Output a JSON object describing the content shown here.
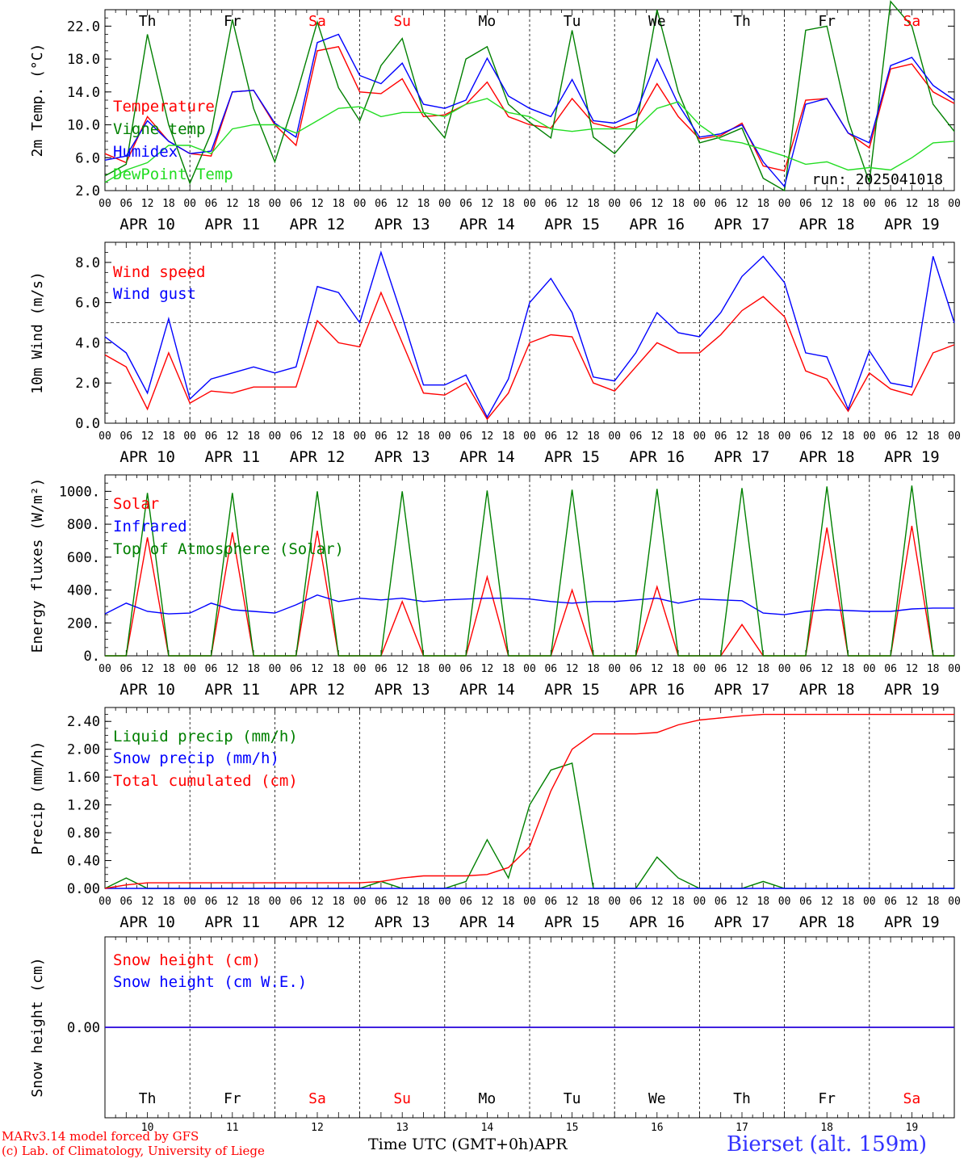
{
  "colors": {
    "red": "#ff0000",
    "green": "#008000",
    "blue": "#0000ff",
    "lightgreen": "#22dd22",
    "grey": "#555555"
  },
  "days": {
    "abbr": [
      "Th",
      "Fr",
      "Sa",
      "Su",
      "Mo",
      "Tu",
      "We",
      "Th",
      "Fr",
      "Sa"
    ],
    "dates": [
      "APR 10",
      "APR 11",
      "APR 12",
      "APR 13",
      "APR 14",
      "APR 15",
      "APR 16",
      "APR 17",
      "APR 18",
      "APR 19"
    ],
    "daynums": [
      "10",
      "11",
      "12",
      "13",
      "14",
      "15",
      "16",
      "17",
      "18",
      "19"
    ],
    "weekend": [
      false,
      false,
      true,
      true,
      false,
      false,
      false,
      false,
      false,
      true
    ]
  },
  "hour_ticks": [
    "00",
    "06",
    "12",
    "18"
  ],
  "hour_end": "00",
  "footer": {
    "model": "MARv3.14 model forced by GFS",
    "lab": "(c) Lab. of Climatology, University of Liege",
    "xlabel": "Time UTC (GMT+0h)",
    "month": "APR",
    "station": "Bierset (alt. 159m)"
  },
  "chart_data": [
    {
      "type": "line",
      "ylabel": "2m Temp. (°C)",
      "ylim": [
        2.0,
        24.0
      ],
      "yticks": [
        "2.0",
        "6.0",
        "10.0",
        "14.0",
        "18.0",
        "22.0"
      ],
      "run_label": "run: 2025041018",
      "x_hours": [
        0,
        6,
        12,
        18,
        24,
        30,
        36,
        42,
        48,
        54,
        60,
        66,
        72,
        78,
        84,
        90,
        96,
        102,
        108,
        114,
        120,
        126,
        132,
        138,
        144,
        150,
        156,
        162,
        168,
        174,
        180,
        186,
        192,
        198,
        204,
        210,
        216,
        222,
        228,
        234,
        240
      ],
      "series": [
        {
          "name": "Temperature",
          "color": "red",
          "values": [
            6.5,
            5.4,
            11.0,
            8.0,
            6.5,
            6.2,
            14.0,
            14.2,
            10.0,
            7.5,
            19.0,
            19.5,
            14.0,
            13.8,
            15.6,
            11.0,
            11.2,
            12.5,
            15.2,
            11.0,
            10.0,
            9.6,
            13.2,
            10.2,
            9.6,
            10.5,
            15.0,
            11.0,
            8.3,
            8.7,
            10.2,
            5.0,
            4.4,
            13.0,
            13.2,
            9.0,
            7.2,
            16.8,
            17.4,
            14.0,
            12.6
          ]
        },
        {
          "name": "Vigne temp",
          "color": "green",
          "values": [
            3.8,
            5.2,
            21.0,
            10.0,
            2.9,
            9.0,
            22.8,
            12.0,
            5.5,
            13.5,
            22.5,
            14.5,
            10.5,
            17.2,
            20.5,
            11.5,
            8.4,
            18.0,
            19.5,
            12.5,
            10.3,
            8.4,
            21.5,
            8.5,
            6.5,
            9.5,
            24.0,
            14.0,
            7.8,
            8.5,
            9.6,
            3.5,
            2.0,
            21.5,
            22.0,
            10.5,
            3.0,
            25.0,
            22.0,
            12.5,
            9.2
          ]
        },
        {
          "name": "Humidex",
          "color": "blue",
          "values": [
            5.7,
            6.2,
            10.5,
            8.0,
            6.5,
            6.8,
            14.0,
            14.2,
            10.2,
            8.5,
            20.0,
            21.0,
            16.0,
            15.0,
            17.5,
            12.5,
            12.0,
            13.0,
            18.1,
            13.5,
            12.0,
            11.0,
            15.5,
            10.5,
            10.2,
            11.4,
            18.0,
            12.5,
            8.5,
            8.9,
            10.0,
            5.5,
            2.5,
            12.5,
            13.2,
            9.0,
            7.8,
            17.2,
            18.2,
            14.8,
            13.0
          ]
        },
        {
          "name": "DewPoint Temp",
          "color": "lightgreen",
          "values": [
            3.0,
            4.5,
            5.4,
            7.5,
            7.5,
            6.5,
            9.5,
            10.0,
            10.0,
            9.0,
            10.5,
            12.0,
            12.2,
            11.0,
            11.5,
            11.5,
            11.0,
            12.5,
            13.2,
            11.5,
            11.0,
            9.5,
            9.2,
            9.5,
            9.5,
            9.5,
            12.0,
            12.8,
            10.0,
            8.2,
            7.8,
            7.0,
            6.2,
            5.2,
            5.5,
            4.5,
            4.8,
            4.5,
            6.0,
            7.8,
            8.0
          ]
        }
      ]
    },
    {
      "type": "line",
      "ylabel": "10m Wind (m/s)",
      "ylim": [
        0.0,
        9.0
      ],
      "yticks": [
        "0.0",
        "2.0",
        "4.0",
        "6.0",
        "8.0"
      ],
      "ref_line": 5.0,
      "x_hours": [
        0,
        6,
        12,
        18,
        24,
        30,
        36,
        42,
        48,
        54,
        60,
        66,
        72,
        78,
        84,
        90,
        96,
        102,
        108,
        114,
        120,
        126,
        132,
        138,
        144,
        150,
        156,
        162,
        168,
        174,
        180,
        186,
        192,
        198,
        204,
        210,
        216,
        222,
        228,
        234,
        240
      ],
      "series": [
        {
          "name": "Wind speed",
          "color": "red",
          "values": [
            3.4,
            2.8,
            0.7,
            3.5,
            1.0,
            1.6,
            1.5,
            1.8,
            1.8,
            1.8,
            5.1,
            4.0,
            3.8,
            6.5,
            4.0,
            1.5,
            1.4,
            2.0,
            0.2,
            1.5,
            4.0,
            4.4,
            4.3,
            2.0,
            1.6,
            2.8,
            4.0,
            3.5,
            3.5,
            4.4,
            5.6,
            6.3,
            5.3,
            2.6,
            2.2,
            0.6,
            2.5,
            1.7,
            1.4,
            3.5,
            3.9
          ]
        },
        {
          "name": "Wind gust",
          "color": "blue",
          "values": [
            4.3,
            3.5,
            1.5,
            5.2,
            1.2,
            2.2,
            2.5,
            2.8,
            2.5,
            2.8,
            6.8,
            6.5,
            5.0,
            8.5,
            5.3,
            1.9,
            1.9,
            2.4,
            0.3,
            2.2,
            6.0,
            7.2,
            5.5,
            2.3,
            2.1,
            3.5,
            5.5,
            4.5,
            4.3,
            5.5,
            7.3,
            8.3,
            7.0,
            3.5,
            3.3,
            0.7,
            3.6,
            2.0,
            1.8,
            8.3,
            5.0
          ]
        }
      ]
    },
    {
      "type": "line",
      "ylabel": "Energy fluxes (W/m²)",
      "ylim": [
        0,
        1100
      ],
      "yticks": [
        "0.",
        "200.",
        "400.",
        "600.",
        "800.",
        "1000."
      ],
      "x_hours": [
        0,
        6,
        12,
        18,
        24,
        30,
        36,
        42,
        48,
        54,
        60,
        66,
        72,
        78,
        84,
        90,
        96,
        102,
        108,
        114,
        120,
        126,
        132,
        138,
        144,
        150,
        156,
        162,
        168,
        174,
        180,
        186,
        192,
        198,
        204,
        210,
        216,
        222,
        228,
        234,
        240
      ],
      "series": [
        {
          "name": "Solar",
          "color": "red",
          "values": [
            0,
            0,
            720,
            0,
            0,
            0,
            750,
            0,
            0,
            0,
            760,
            0,
            0,
            0,
            330,
            0,
            0,
            0,
            480,
            0,
            0,
            0,
            400,
            0,
            0,
            0,
            420,
            0,
            0,
            0,
            190,
            0,
            0,
            0,
            780,
            0,
            0,
            0,
            790,
            0,
            0
          ]
        },
        {
          "name": "Infrared",
          "color": "blue",
          "values": [
            255,
            320,
            270,
            255,
            260,
            320,
            280,
            270,
            260,
            310,
            370,
            330,
            350,
            340,
            350,
            330,
            340,
            345,
            350,
            350,
            345,
            330,
            320,
            330,
            330,
            340,
            350,
            320,
            345,
            340,
            335,
            260,
            250,
            270,
            280,
            275,
            270,
            270,
            285,
            290,
            290
          ]
        },
        {
          "name": "Top of Atmosphere (Solar)",
          "color": "green",
          "values": [
            0,
            0,
            990,
            0,
            0,
            0,
            990,
            0,
            0,
            0,
            1000,
            0,
            0,
            0,
            1000,
            0,
            0,
            0,
            1005,
            0,
            0,
            0,
            1010,
            0,
            0,
            0,
            1015,
            0,
            0,
            0,
            1020,
            0,
            0,
            0,
            1030,
            0,
            0,
            0,
            1035,
            0,
            0
          ]
        }
      ]
    },
    {
      "type": "line",
      "ylabel": "Precip (mm/h)",
      "ylim": [
        0.0,
        2.6
      ],
      "yticks": [
        "0.00",
        "0.40",
        "0.80",
        "1.20",
        "1.60",
        "2.00",
        "2.40"
      ],
      "x_hours": [
        0,
        6,
        12,
        18,
        24,
        30,
        36,
        42,
        48,
        54,
        60,
        66,
        72,
        78,
        84,
        90,
        96,
        102,
        108,
        114,
        120,
        126,
        132,
        138,
        144,
        150,
        156,
        162,
        168,
        174,
        180,
        186,
        192,
        198,
        204,
        210,
        216,
        222,
        228,
        234,
        240
      ],
      "series": [
        {
          "name": "Liquid precip (mm/h)",
          "color": "green",
          "values": [
            0,
            0.15,
            0,
            0,
            0,
            0,
            0,
            0,
            0,
            0,
            0,
            0,
            0,
            0.1,
            0,
            0,
            0,
            0.1,
            0.7,
            0.15,
            1.2,
            1.7,
            1.8,
            0,
            0,
            0,
            0.45,
            0.15,
            0,
            0,
            0,
            0.1,
            0,
            0,
            0,
            0,
            0,
            0,
            0,
            0,
            0
          ]
        },
        {
          "name": "Snow precip (mm/h)",
          "color": "blue",
          "values": [
            0,
            0,
            0,
            0,
            0,
            0,
            0,
            0,
            0,
            0,
            0,
            0,
            0,
            0,
            0,
            0,
            0,
            0,
            0,
            0,
            0,
            0,
            0,
            0,
            0,
            0,
            0,
            0,
            0,
            0,
            0,
            0,
            0,
            0,
            0,
            0,
            0,
            0,
            0,
            0,
            0
          ]
        },
        {
          "name": "Total cumulated (cm)",
          "color": "red",
          "values": [
            0,
            0.05,
            0.08,
            0.08,
            0.08,
            0.08,
            0.08,
            0.08,
            0.08,
            0.08,
            0.08,
            0.08,
            0.08,
            0.1,
            0.15,
            0.18,
            0.18,
            0.18,
            0.2,
            0.3,
            0.6,
            1.4,
            2.0,
            2.22,
            2.22,
            2.22,
            2.24,
            2.35,
            2.42,
            2.45,
            2.48,
            2.5,
            2.5,
            2.5,
            2.5,
            2.5,
            2.5,
            2.5,
            2.5,
            2.5,
            2.5
          ]
        }
      ]
    },
    {
      "type": "line",
      "ylabel": "Snow height (cm)",
      "ylim": [
        -1.0,
        1.0
      ],
      "yticks": [
        "0.00"
      ],
      "x_hours": [
        0,
        240
      ],
      "series": [
        {
          "name": "Snow height (cm)",
          "color": "red",
          "values": [
            0,
            0
          ]
        },
        {
          "name": "Snow height (cm W.E.)",
          "color": "blue",
          "values": [
            0,
            0
          ]
        }
      ]
    }
  ]
}
